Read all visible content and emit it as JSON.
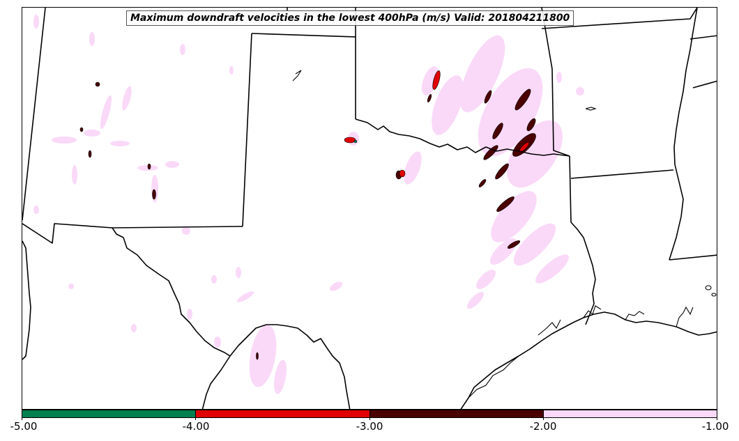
{
  "title": "Maximum downdraft velocities in the lowest 400hPa (m/s) Valid: 201804211800",
  "colorbar": {
    "min": -5.0,
    "max": -1.0,
    "ticks": [
      "-5.00",
      "-4.00",
      "-3.00",
      "-2.00",
      "-1.00"
    ],
    "bins": [
      {
        "from": -5.0,
        "to": -4.0,
        "color": "#007f4f"
      },
      {
        "from": -4.0,
        "to": -3.0,
        "color": "#e00000"
      },
      {
        "from": -3.0,
        "to": -2.0,
        "color": "#4a0000"
      },
      {
        "from": -2.0,
        "to": -1.0,
        "color": "#fad9f8"
      }
    ]
  },
  "map": {
    "region": "southern-plains",
    "boundary_color": "#000000",
    "field_colors": {
      "weak": "#fad9f8",
      "moderate": "#4a0000",
      "strong": "#e00000",
      "extreme": "#007f4f"
    }
  }
}
